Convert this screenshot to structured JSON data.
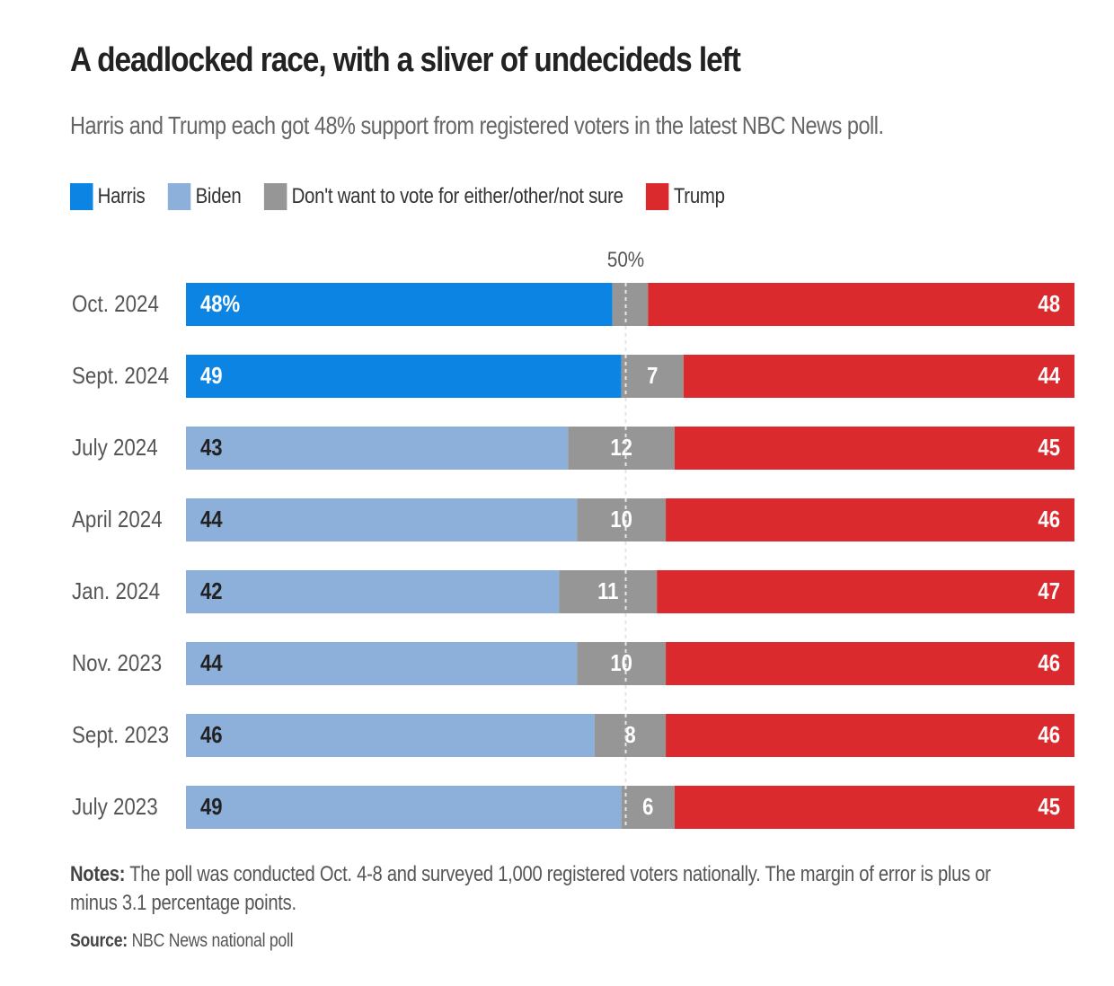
{
  "chart_data": {
    "type": "bar",
    "orientation": "horizontal",
    "stacked": true,
    "title": "A deadlocked race, with a sliver of undecideds left",
    "subtitle": "Harris and Trump each got 48% support from registered voters in the latest NBC News poll.",
    "legend": [
      {
        "label": "Harris",
        "color": "#0b84e3"
      },
      {
        "label": "Biden",
        "color": "#8db0da"
      },
      {
        "label": "Don't want to vote for either/other/not sure",
        "color": "#969696"
      },
      {
        "label": "Trump",
        "color": "#db2a2d"
      }
    ],
    "legend_position": "top-left",
    "reference_line": {
      "value": 50,
      "label": "50%"
    },
    "xlim": [
      0,
      100
    ],
    "categories": [
      "Oct. 2024",
      "Sept. 2024",
      "July 2024",
      "April 2024",
      "Jan. 2024",
      "Nov. 2023",
      "Sept. 2023",
      "July 2023"
    ],
    "series": [
      {
        "name": "Harris",
        "values": [
          48,
          49,
          null,
          null,
          null,
          null,
          null,
          null
        ]
      },
      {
        "name": "Biden",
        "values": [
          null,
          null,
          43,
          44,
          42,
          44,
          46,
          49
        ]
      },
      {
        "name": "Don't want to vote for either/other/not sure",
        "values": [
          4,
          7,
          12,
          10,
          11,
          10,
          8,
          6
        ]
      },
      {
        "name": "Trump",
        "values": [
          48,
          44,
          45,
          46,
          47,
          46,
          46,
          45
        ]
      }
    ],
    "data_labels": [
      {
        "dem": "48%",
        "other": "",
        "trump": "48"
      },
      {
        "dem": "49",
        "other": "7",
        "trump": "44"
      },
      {
        "dem": "43",
        "other": "12",
        "trump": "45"
      },
      {
        "dem": "44",
        "other": "10",
        "trump": "46"
      },
      {
        "dem": "42",
        "other": "11",
        "trump": "47"
      },
      {
        "dem": "44",
        "other": "10",
        "trump": "46"
      },
      {
        "dem": "46",
        "other": "8",
        "trump": "46"
      },
      {
        "dem": "49",
        "other": "6",
        "trump": "45"
      }
    ],
    "label_colors": {
      "on_harris": "#ffffff",
      "on_biden": "#222222",
      "on_other": "#ffffff",
      "on_trump": "#ffffff",
      "category": "#555555",
      "reference": "#555555"
    }
  },
  "notes": {
    "label": "Notes:",
    "text": " The poll was conducted Oct. 4-8 and surveyed 1,000 registered voters nationally. The margin of error is plus or minus 3.1 percentage points."
  },
  "source": {
    "label": "Source:",
    "text": " NBC News national poll"
  }
}
